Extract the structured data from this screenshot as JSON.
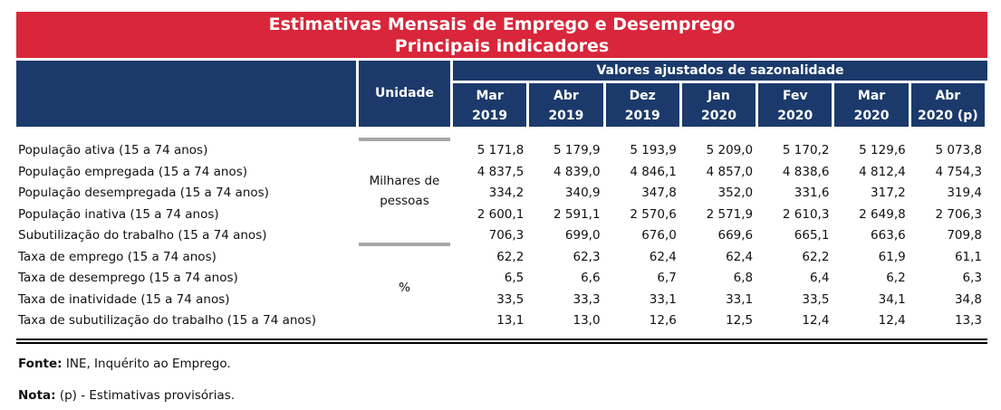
{
  "title": {
    "line1": "Estimativas Mensais de Emprego e Desemprego",
    "line2": "Principais indicadores"
  },
  "header": {
    "unit_label": "Unidade",
    "group_label": "Valores ajustados de sazonalidade",
    "columns": [
      {
        "month": "Mar",
        "year": "2019"
      },
      {
        "month": "Abr",
        "year": "2019"
      },
      {
        "month": "Dez",
        "year": "2019"
      },
      {
        "month": "Jan",
        "year": "2020"
      },
      {
        "month": "Fev",
        "year": "2020"
      },
      {
        "month": "Mar",
        "year": "2020"
      },
      {
        "month": "Abr",
        "year": "2020 (p)"
      }
    ]
  },
  "units": {
    "thousands": "Milhares de pessoas",
    "percent": "%"
  },
  "rows": [
    {
      "label": "População ativa (15 a 74 anos)",
      "values": [
        "5 171,8",
        "5 179,9",
        "5 193,9",
        "5 209,0",
        "5 170,2",
        "5 129,6",
        "5 073,8"
      ]
    },
    {
      "label": "População empregada (15 a 74 anos)",
      "values": [
        "4 837,5",
        "4 839,0",
        "4 846,1",
        "4 857,0",
        "4 838,6",
        "4 812,4",
        "4 754,3"
      ]
    },
    {
      "label": "População desempregada (15 a 74 anos)",
      "values": [
        "334,2",
        "340,9",
        "347,8",
        "352,0",
        "331,6",
        "317,2",
        "319,4"
      ]
    },
    {
      "label": "População inativa (15 a 74 anos)",
      "values": [
        "2 600,1",
        "2 591,1",
        "2 570,6",
        "2 571,9",
        "2 610,3",
        "2 649,8",
        "2 706,3"
      ]
    },
    {
      "label": "Subutilização do trabalho (15 a 74 anos)",
      "values": [
        "706,3",
        "699,0",
        "676,0",
        "669,6",
        "665,1",
        "663,6",
        "709,8"
      ]
    },
    {
      "label": "Taxa de emprego (15 a 74 anos)",
      "values": [
        "62,2",
        "62,3",
        "62,4",
        "62,4",
        "62,2",
        "61,9",
        "61,1"
      ]
    },
    {
      "label": "Taxa de desemprego (15 a 74 anos)",
      "values": [
        "6,5",
        "6,6",
        "6,7",
        "6,8",
        "6,4",
        "6,2",
        "6,3"
      ]
    },
    {
      "label": "Taxa de inatividade (15 a 74 anos)",
      "values": [
        "33,5",
        "33,3",
        "33,1",
        "33,1",
        "33,5",
        "34,1",
        "34,8"
      ]
    },
    {
      "label": "Taxa de subutilização do trabalho (15 a 74 anos)",
      "values": [
        "13,1",
        "13,0",
        "12,6",
        "12,5",
        "12,4",
        "12,4",
        "13,3"
      ]
    }
  ],
  "footer": {
    "source_label": "Fonte:",
    "source_text": " INE, Inquérito ao Emprego.",
    "note_label": "Nota:",
    "note_text": " (p) - Estimativas provisórias."
  },
  "colors": {
    "banner": "#d9263a",
    "header": "#1b3a6b"
  }
}
